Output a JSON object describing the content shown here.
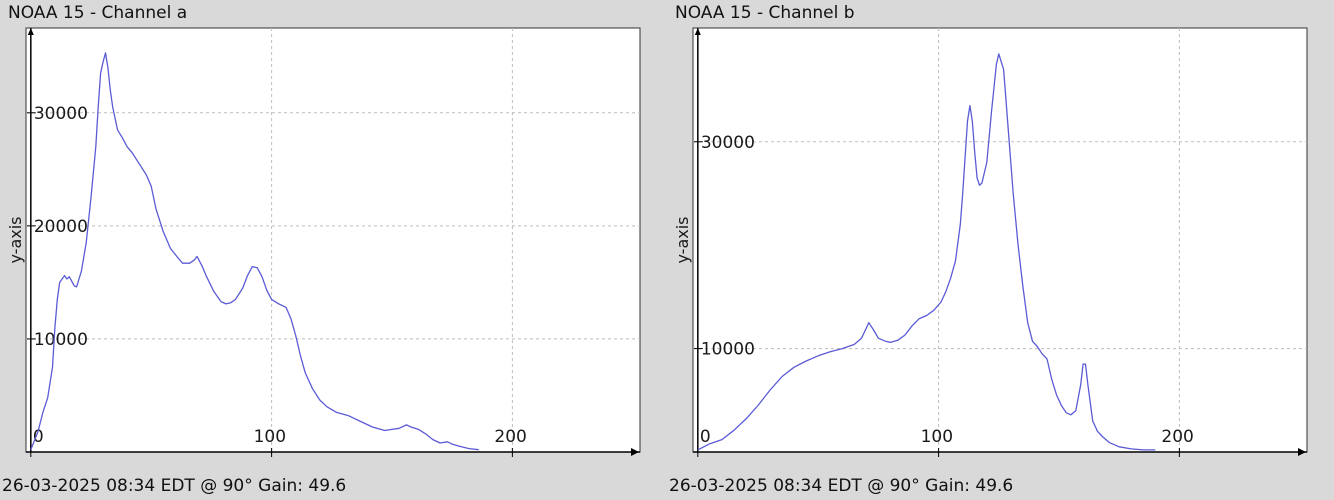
{
  "chart_data": [
    {
      "type": "line",
      "title": "NOAA 15 - Channel a",
      "footer": "26-03-2025 08:34 EDT @ 90° Gain: 49.6",
      "ylabel": "y-axis",
      "xlabel": "",
      "xlim": [
        -2,
        253
      ],
      "ylim": [
        0,
        37500
      ],
      "xticks": [
        0,
        100,
        200
      ],
      "yticks": [
        10000,
        20000,
        30000
      ],
      "grid": true,
      "series": [
        {
          "color": "#5b5bd6",
          "points": [
            [
              0,
              200
            ],
            [
              3,
              1800
            ],
            [
              5,
              3500
            ],
            [
              7,
              4800
            ],
            [
              9,
              7500
            ],
            [
              10,
              11000
            ],
            [
              11,
              13500
            ],
            [
              12,
              15000
            ],
            [
              14,
              15600
            ],
            [
              15,
              15300
            ],
            [
              16,
              15500
            ],
            [
              18,
              14700
            ],
            [
              19,
              14600
            ],
            [
              21,
              16000
            ],
            [
              23,
              18500
            ],
            [
              25,
              22500
            ],
            [
              27,
              27000
            ],
            [
              28,
              30500
            ],
            [
              29,
              33500
            ],
            [
              30,
              34500
            ],
            [
              31,
              35300
            ],
            [
              32,
              34000
            ],
            [
              33,
              32000
            ],
            [
              34,
              30500
            ],
            [
              36,
              28500
            ],
            [
              38,
              27800
            ],
            [
              40,
              27000
            ],
            [
              42,
              26500
            ],
            [
              45,
              25500
            ],
            [
              48,
              24500
            ],
            [
              50,
              23500
            ],
            [
              52,
              21500
            ],
            [
              55,
              19500
            ],
            [
              58,
              18000
            ],
            [
              61,
              17200
            ],
            [
              63,
              16700
            ],
            [
              66,
              16700
            ],
            [
              68,
              17000
            ],
            [
              69,
              17300
            ],
            [
              71,
              16500
            ],
            [
              73,
              15500
            ],
            [
              76,
              14200
            ],
            [
              79,
              13300
            ],
            [
              81,
              13100
            ],
            [
              83,
              13200
            ],
            [
              85,
              13500
            ],
            [
              88,
              14500
            ],
            [
              90,
              15600
            ],
            [
              92,
              16400
            ],
            [
              94,
              16300
            ],
            [
              96,
              15500
            ],
            [
              98,
              14300
            ],
            [
              100,
              13500
            ],
            [
              103,
              13100
            ],
            [
              106,
              12800
            ],
            [
              108,
              11800
            ],
            [
              110,
              10300
            ],
            [
              112,
              8500
            ],
            [
              114,
              7000
            ],
            [
              117,
              5600
            ],
            [
              120,
              4600
            ],
            [
              123,
              4000
            ],
            [
              127,
              3500
            ],
            [
              132,
              3200
            ],
            [
              137,
              2700
            ],
            [
              142,
              2200
            ],
            [
              147,
              1900
            ],
            [
              150,
              2000
            ],
            [
              153,
              2100
            ],
            [
              156,
              2400
            ],
            [
              158,
              2200
            ],
            [
              161,
              2000
            ],
            [
              164,
              1600
            ],
            [
              167,
              1100
            ],
            [
              170,
              800
            ],
            [
              173,
              900
            ],
            [
              175,
              700
            ],
            [
              178,
              500
            ],
            [
              182,
              300
            ],
            [
              186,
              200
            ]
          ]
        }
      ]
    },
    {
      "type": "line",
      "title": "NOAA 15 - Channel b",
      "footer": "26-03-2025 08:34 EDT @ 90° Gain: 49.6",
      "ylabel": "y-axis",
      "xlabel": "",
      "xlim": [
        -2,
        253
      ],
      "ylim": [
        0,
        41000
      ],
      "xticks": [
        0,
        100,
        200
      ],
      "yticks": [
        10000,
        30000
      ],
      "grid": true,
      "series": [
        {
          "color": "#5b5bd6",
          "points": [
            [
              0,
              200
            ],
            [
              5,
              800
            ],
            [
              10,
              1200
            ],
            [
              15,
              2100
            ],
            [
              20,
              3200
            ],
            [
              25,
              4500
            ],
            [
              30,
              6000
            ],
            [
              35,
              7300
            ],
            [
              40,
              8200
            ],
            [
              45,
              8800
            ],
            [
              50,
              9300
            ],
            [
              55,
              9700
            ],
            [
              60,
              10000
            ],
            [
              65,
              10400
            ],
            [
              68,
              11000
            ],
            [
              70,
              12000
            ],
            [
              71,
              12500
            ],
            [
              73,
              11800
            ],
            [
              75,
              11000
            ],
            [
              78,
              10700
            ],
            [
              80,
              10600
            ],
            [
              83,
              10800
            ],
            [
              86,
              11300
            ],
            [
              89,
              12200
            ],
            [
              92,
              12900
            ],
            [
              95,
              13200
            ],
            [
              98,
              13700
            ],
            [
              101,
              14500
            ],
            [
              103,
              15500
            ],
            [
              105,
              16800
            ],
            [
              107,
              18500
            ],
            [
              109,
              22000
            ],
            [
              110,
              25000
            ],
            [
              111,
              28500
            ],
            [
              112,
              32000
            ],
            [
              113,
              33500
            ],
            [
              114,
              32000
            ],
            [
              115,
              29000
            ],
            [
              116,
              26500
            ],
            [
              117,
              25800
            ],
            [
              118,
              26000
            ],
            [
              120,
              28000
            ],
            [
              122,
              33000
            ],
            [
              124,
              37500
            ],
            [
              125,
              38500
            ],
            [
              127,
              37000
            ],
            [
              129,
              31000
            ],
            [
              131,
              25000
            ],
            [
              133,
              20000
            ],
            [
              135,
              16000
            ],
            [
              137,
              12500
            ],
            [
              139,
              10700
            ],
            [
              141,
              10200
            ],
            [
              143,
              9500
            ],
            [
              145,
              9000
            ],
            [
              147,
              7000
            ],
            [
              149,
              5500
            ],
            [
              151,
              4500
            ],
            [
              153,
              3800
            ],
            [
              155,
              3600
            ],
            [
              157,
              4000
            ],
            [
              159,
              6500
            ],
            [
              160,
              8500
            ],
            [
              161,
              8500
            ],
            [
              162,
              6500
            ],
            [
              164,
              3000
            ],
            [
              166,
              2000
            ],
            [
              168,
              1500
            ],
            [
              171,
              900
            ],
            [
              175,
              500
            ],
            [
              180,
              300
            ],
            [
              185,
              200
            ],
            [
              190,
              200
            ]
          ]
        }
      ]
    }
  ]
}
